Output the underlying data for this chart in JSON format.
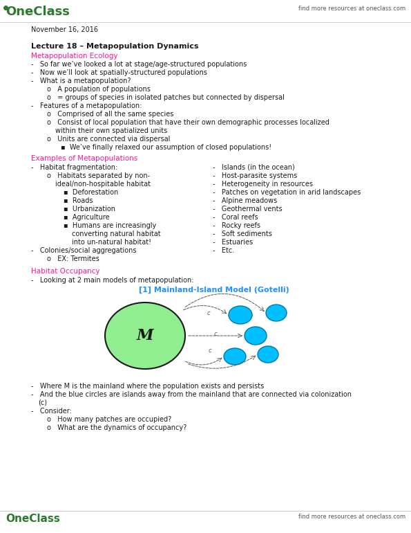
{
  "bg_color": "#ffffff",
  "logo_color": "#2d7a2d",
  "accent_color": "#ff1493",
  "blue_color": "#1e90ff",
  "text_color": "#1a1a1a",
  "gray_color": "#555555",
  "header_right": "find more resources at oneclass.com",
  "footer_right": "find more resources at oneclass.com",
  "date": "November 16, 2016",
  "mainland_color": "#90ee90",
  "mainland_edge": "#1a1a1a",
  "island_color": "#00bfff",
  "island_edge": "#0077aa"
}
